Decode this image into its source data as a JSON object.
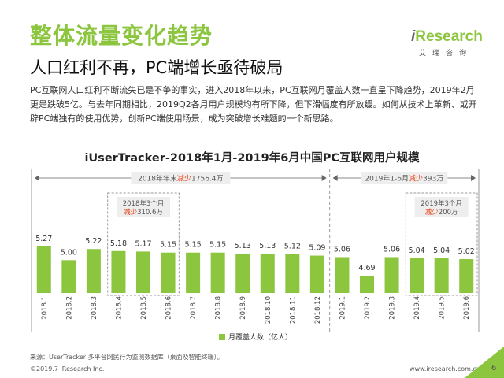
{
  "header": {
    "title": "整体流量变化趋势",
    "subtitle": "人口红利不再，PC端增长亟待破局"
  },
  "logo": {
    "brand_i": "i",
    "brand_rest": "Research",
    "brand_sub": "艾瑞咨询",
    "brand_color": "#8cc63f"
  },
  "body_text": "PC互联网人口红利不断流失已是不争的事实，进入2018年以来，PC互联网月覆盖人数一直呈下降趋势，2019年2月更是跌破5亿。与去年同期相比，2019Q2各月用户规模均有所下降，但下滑幅度有所放缓。如何从技术上革新、或开辟PC端独有的使用优势，创新PC端使用场景，成为突破增长难题的一个新思路。",
  "chart_data": {
    "type": "bar",
    "title": "iUserTracker-2018年1月-2019年6月中国PC互联网用户规模",
    "categories": [
      "2018.1",
      "2018.2",
      "2018.3",
      "2018.4",
      "2018.5",
      "2018.6",
      "2018.7",
      "2018.8",
      "2018.9",
      "2018.10",
      "2018.11",
      "2018.12",
      "2019.1",
      "2019.2",
      "2019.3",
      "2019.4",
      "2019.5",
      "2019.6"
    ],
    "series": [
      {
        "name": "月覆盖人数（亿人）",
        "values": [
          5.27,
          5.0,
          5.22,
          5.18,
          5.17,
          5.15,
          5.15,
          5.15,
          5.13,
          5.13,
          5.12,
          5.09,
          5.06,
          4.69,
          5.06,
          5.04,
          5.04,
          5.02
        ],
        "color": "#8cc63f"
      }
    ],
    "value_labels": [
      "5.27",
      "5.00",
      "5.22",
      "5.18",
      "5.17",
      "5.15",
      "5.15",
      "5.15",
      "5.13",
      "5.13",
      "5.12",
      "5.09",
      "5.06",
      "4.69",
      "5.06",
      "5.04",
      "5.04",
      "5.02"
    ],
    "legend_position": "bottom-center",
    "grid": false,
    "annotations": [
      {
        "text_plain": "2018年年末",
        "text_emph": "减少",
        "text_tail": "1756.4万",
        "first": 0,
        "last": 11
      },
      {
        "text_plain": "2019年1-6月",
        "text_emph": "减少",
        "text_tail": "393万",
        "first": 12,
        "last": 17
      },
      {
        "line1": "2018年3个月",
        "text_emph": "减少",
        "text_tail": "310.6万",
        "first": 3,
        "last": 5
      },
      {
        "line1": "2019年3个月",
        "text_emph": "减少",
        "text_tail": "200万",
        "first": 15,
        "last": 17
      }
    ],
    "emph_color": "#e8380d"
  },
  "source_text": "来源：UserTracker 多平台网民行为监测数据库（桌面及智能终端）。",
  "footer": {
    "copyright": "©2019.7 iResearch Inc.",
    "url": "www.iresearch.com.cn",
    "page": "6"
  }
}
